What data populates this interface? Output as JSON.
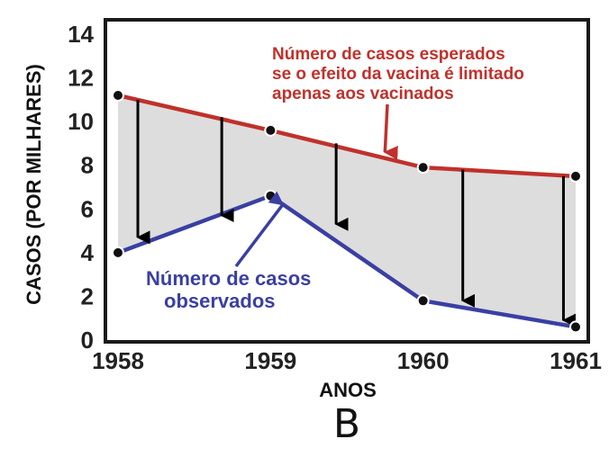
{
  "chart_data": {
    "type": "line",
    "x": [
      1958,
      1959,
      1960,
      1961
    ],
    "xlim": [
      1958,
      1961
    ],
    "ylim": [
      0,
      14
    ],
    "x_ticks": [
      "1958",
      "1959",
      "1960",
      "1961"
    ],
    "y_ticks": [
      "0",
      "2",
      "4",
      "6",
      "8",
      "10",
      "12",
      "14"
    ],
    "xlabel": "ANOS",
    "ylabel": "CASOS (POR MILHARES)",
    "panel_label": "B",
    "grid": false,
    "legend": "none",
    "series": [
      {
        "key": "expected",
        "points": [
          [
            1958,
            11.2
          ],
          [
            1959,
            9.6
          ],
          [
            1960,
            7.9
          ],
          [
            1961,
            7.5
          ]
        ],
        "color": "#c0312b"
      },
      {
        "key": "observed",
        "points": [
          [
            1958,
            4.0
          ],
          [
            1959,
            6.6
          ],
          [
            1960,
            1.8
          ],
          [
            1961,
            0.6
          ]
        ],
        "color": "#3a3fa3"
      }
    ],
    "gap_fill_color": "#dddddd",
    "arrows": [
      {
        "x": 1958.13,
        "y_from": 11.0,
        "y_to": 4.7
      },
      {
        "x": 1958.68,
        "y_from": 10.2,
        "y_to": 5.7
      },
      {
        "x": 1959.43,
        "y_from": 9.0,
        "y_to": 5.3
      },
      {
        "x": 1960.26,
        "y_from": 7.8,
        "y_to": 1.8
      },
      {
        "x": 1960.92,
        "y_from": 7.5,
        "y_to": 0.9
      }
    ],
    "annotations": {
      "expected": {
        "lines": [
          "Número de casos esperados",
          "se o efeito da vacina é limitado",
          "apenas aos vacinados"
        ],
        "color": "#c0312b",
        "arrow_to": [
          1959.75,
          8.6
        ]
      },
      "observed": {
        "lines": [
          "Número de casos",
          "observados"
        ],
        "color": "#3a3fa3",
        "arrow_to": [
          1959.08,
          6.2
        ]
      }
    }
  }
}
